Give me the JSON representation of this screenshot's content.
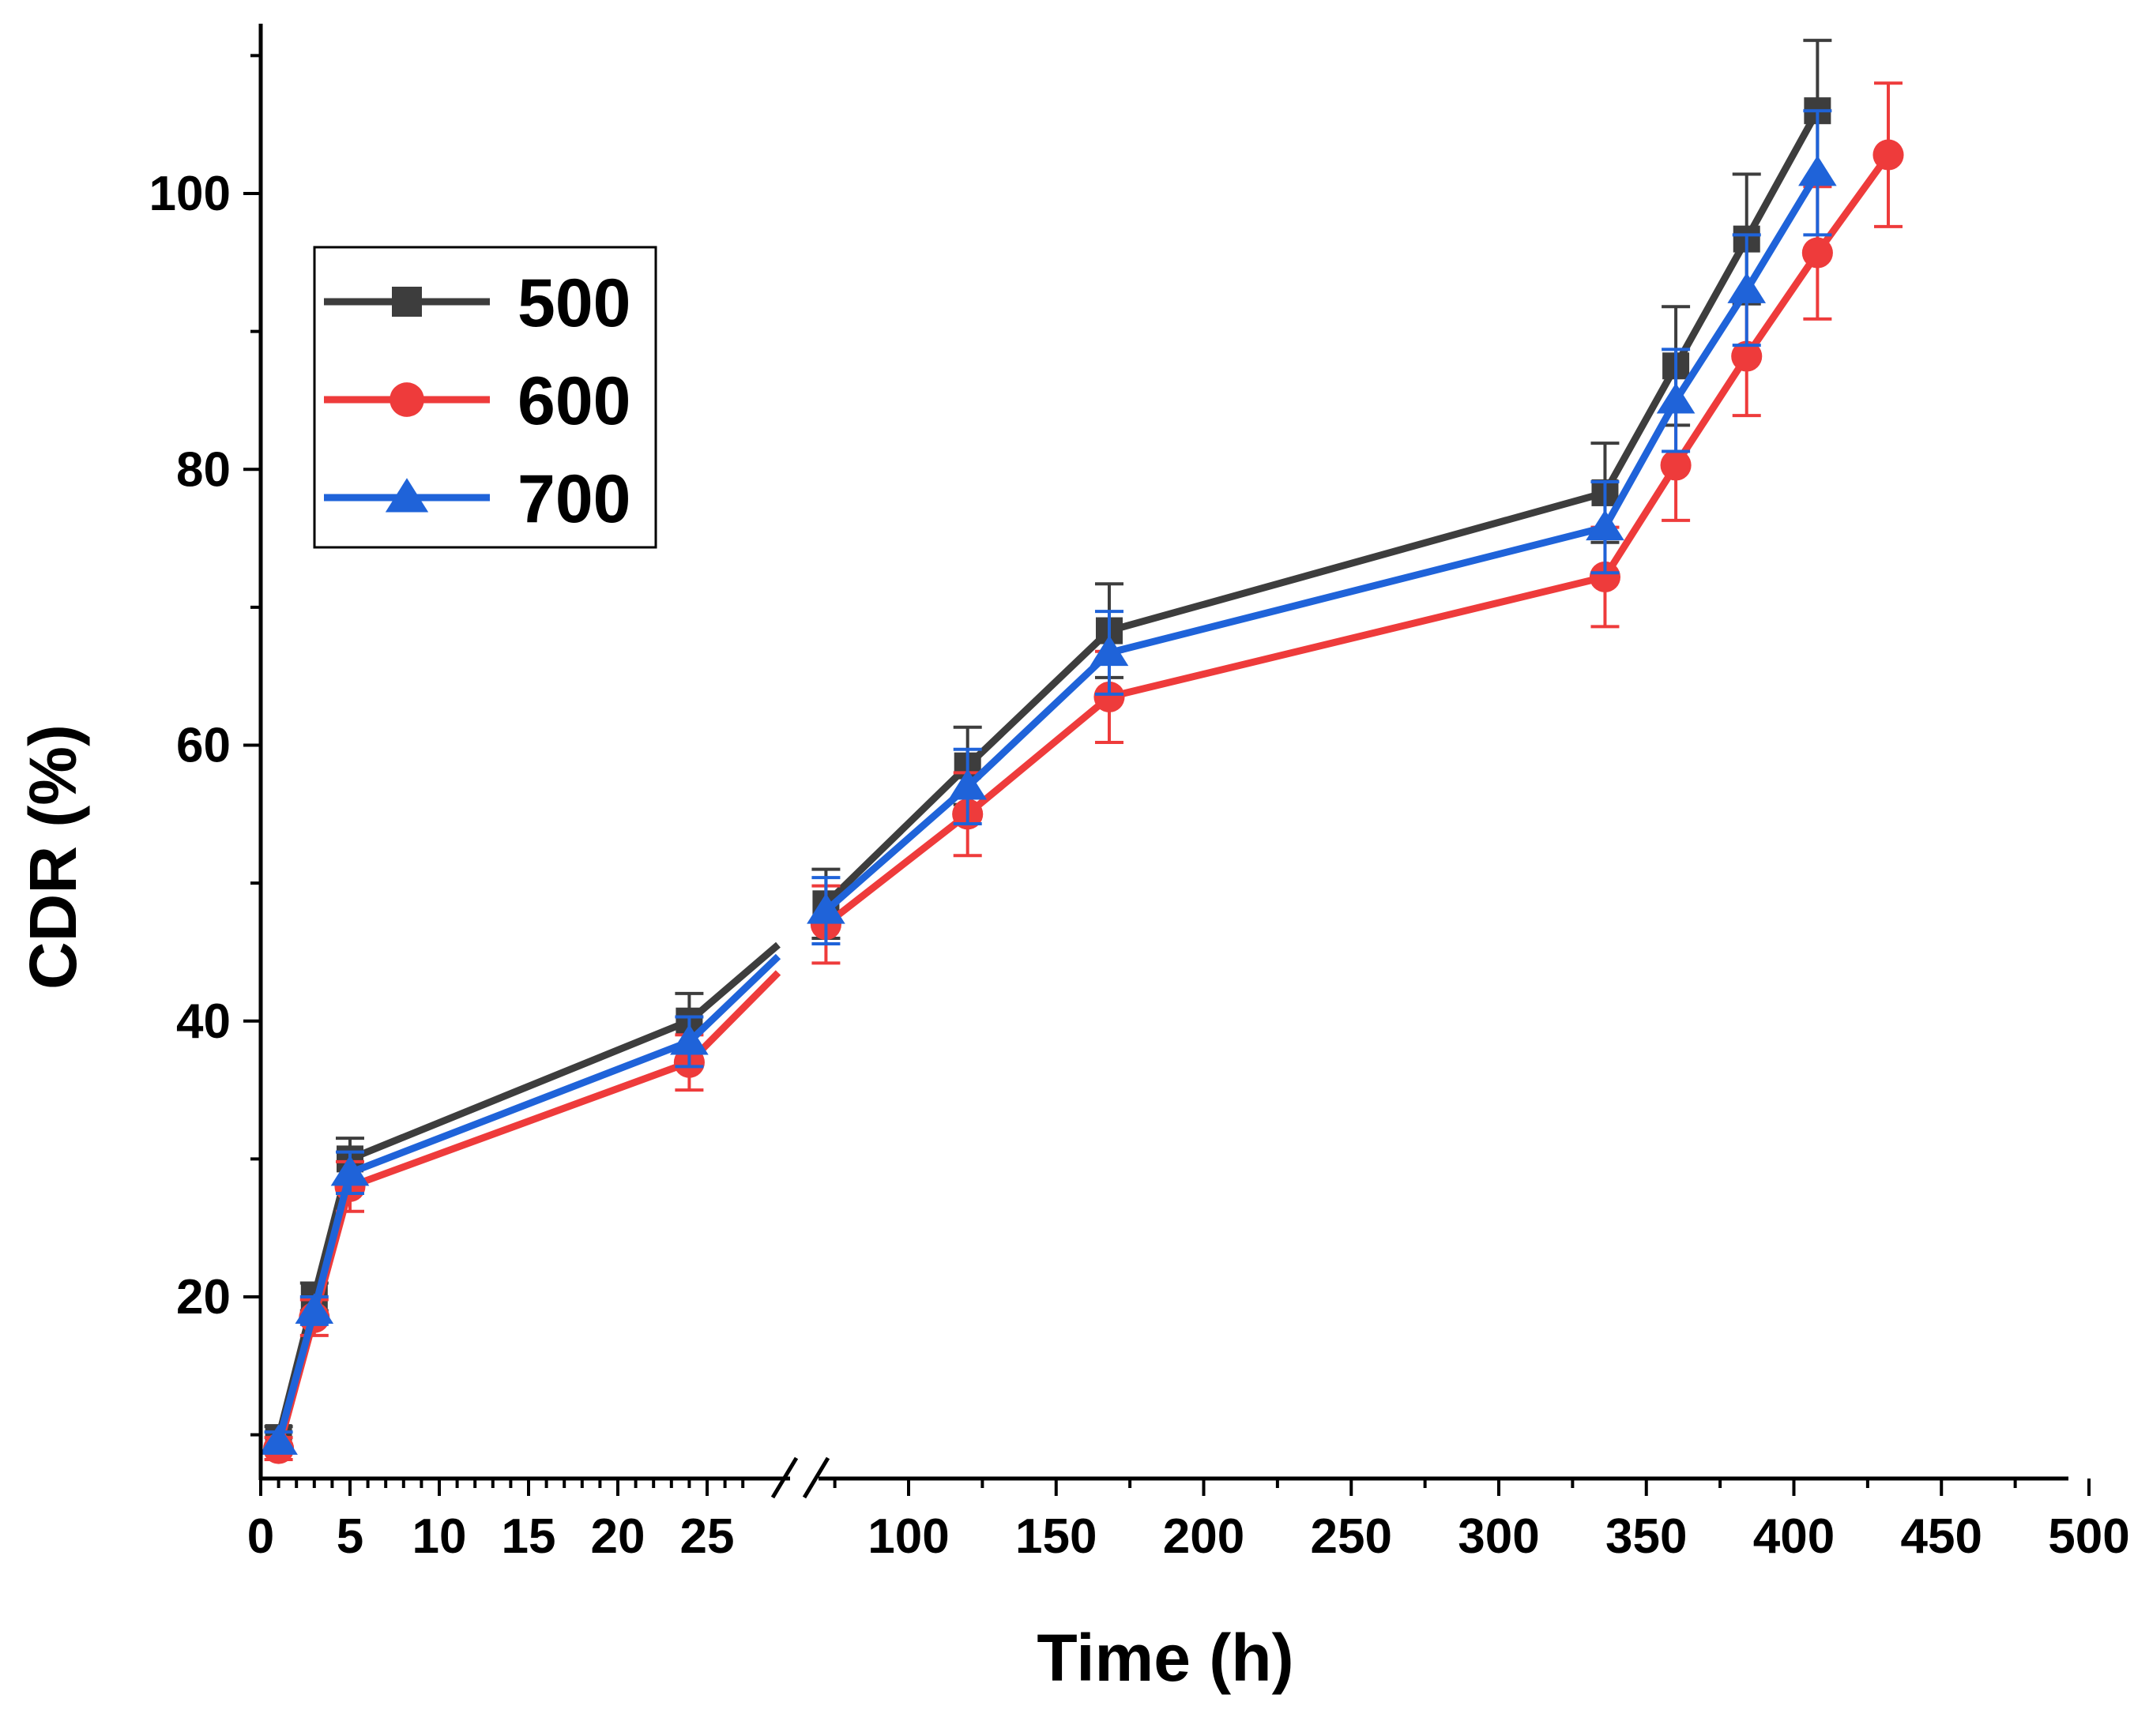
{
  "chart_data": {
    "type": "line",
    "title": "",
    "xlabel": "Time (h)",
    "ylabel": "CDR (%)",
    "axis_break": "after 25 h (broken x-axis)",
    "x_ticks_left_segment": [
      0,
      5,
      10,
      15,
      20,
      25
    ],
    "x_ticks_right_segment": [
      100,
      150,
      200,
      250,
      300,
      350,
      400,
      450,
      500
    ],
    "x_tick_labels": [
      "0",
      "5",
      "10",
      "15",
      "20",
      "25",
      "100",
      "150",
      "200",
      "250",
      "300",
      "350",
      "400",
      "450",
      "500"
    ],
    "y_ticks": [
      20,
      40,
      60,
      80,
      100
    ],
    "y_tick_labels": [
      "20",
      "40",
      "60",
      "80",
      "100"
    ],
    "ylim": [
      7,
      112
    ],
    "legend": [
      "500",
      "600",
      "700"
    ],
    "legend_position": "upper-left",
    "series": [
      {
        "name": "500",
        "color": "#3d3d3d",
        "marker": "square",
        "x": [
          1,
          3,
          5,
          24,
          72,
          120,
          168,
          336,
          360,
          384,
          408
        ],
        "values": [
          9.8,
          20.0,
          30.0,
          40.0,
          48.5,
          58.5,
          68.3,
          78.3,
          87.5,
          96.7,
          106.0
        ],
        "errors": [
          0.8,
          1.0,
          1.5,
          2.0,
          2.5,
          2.8,
          3.4,
          3.6,
          4.3,
          4.7,
          5.1
        ]
      },
      {
        "name": "600",
        "color": "#ee3b3b",
        "marker": "circle",
        "x": [
          1,
          3,
          5,
          24,
          72,
          120,
          168,
          336,
          360,
          384,
          408,
          432
        ],
        "values": [
          9.0,
          18.5,
          28.0,
          37.0,
          47.0,
          55.0,
          63.5,
          72.2,
          80.3,
          88.2,
          95.7,
          102.8
        ],
        "errors": [
          0.8,
          1.3,
          1.8,
          2.0,
          2.8,
          3.0,
          3.3,
          3.6,
          4.0,
          4.3,
          4.8,
          5.2
        ]
      },
      {
        "name": "700",
        "color": "#1f63d9",
        "marker": "triangle",
        "x": [
          1,
          3,
          5,
          24,
          72,
          120,
          168,
          336,
          360,
          384,
          408
        ],
        "values": [
          9.5,
          19.0,
          29.0,
          38.5,
          48.0,
          57.0,
          66.7,
          75.8,
          85.0,
          93.0,
          101.5
        ],
        "errors": [
          0.7,
          1.0,
          1.5,
          1.8,
          2.4,
          2.7,
          3.0,
          3.3,
          3.7,
          4.0,
          4.5
        ]
      }
    ]
  }
}
